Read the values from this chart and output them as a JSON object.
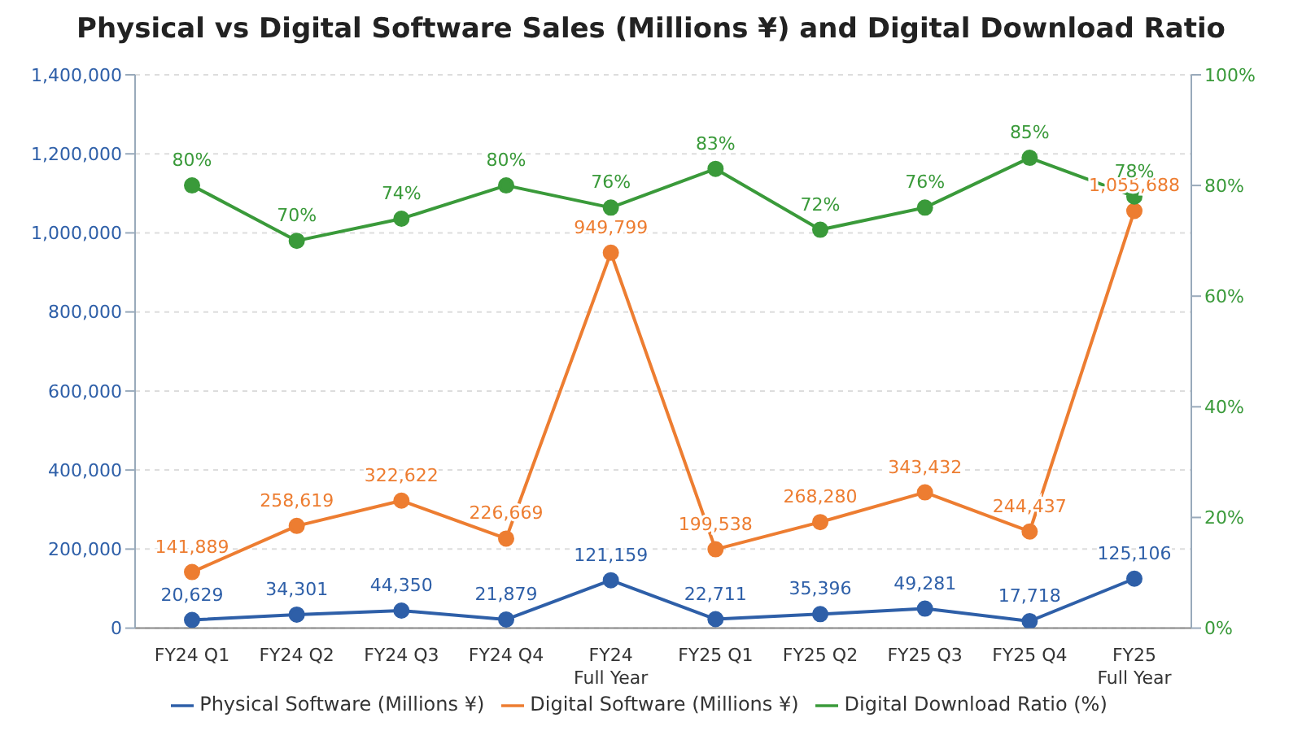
{
  "chart_data": {
    "type": "line",
    "title": "Physical vs Digital Software Sales (Millions ¥) and Digital Download Ratio",
    "categories": [
      "FY24 Q1",
      "FY24 Q2",
      "FY24 Q3",
      "FY24 Q4",
      "FY24\nFull Year",
      "FY25 Q1",
      "FY25 Q2",
      "FY25 Q3",
      "FY25 Q4",
      "FY25\nFull Year"
    ],
    "series": [
      {
        "name": "Physical Software (Millions ¥)",
        "color": "#2e5fa8",
        "values": [
          20629,
          34301,
          44350,
          21879,
          121159,
          22711,
          35396,
          49281,
          17718,
          125106
        ],
        "value_labels": [
          "20,629",
          "34,301",
          "44,350",
          "21,879",
          "121,159",
          "22,711",
          "35,396",
          "49,281",
          "17,718",
          "125,106"
        ]
      },
      {
        "name": "Digital Software (Millions ¥)",
        "color": "#ed7d31",
        "values": [
          141889,
          258619,
          322622,
          226669,
          949799,
          199538,
          268280,
          343432,
          244437,
          1055688
        ],
        "value_labels": [
          "141,889",
          "258,619",
          "322,622",
          "226,669",
          "949,799",
          "199,538",
          "268,280",
          "343,432",
          "244,437",
          "1,055,688"
        ]
      },
      {
        "name": "Digital Download Ratio (%)",
        "color": "#3a9a3a",
        "axis": "y2",
        "values": [
          80,
          70,
          74,
          80,
          76,
          83,
          72,
          76,
          85,
          78
        ],
        "value_labels": [
          "80%",
          "70%",
          "74%",
          "80%",
          "76%",
          "83%",
          "72%",
          "76%",
          "85%",
          "78%"
        ]
      }
    ],
    "ylim": [
      0,
      1400000
    ],
    "yticks": [
      {
        "value": 0,
        "label": "0"
      },
      {
        "value": 200000,
        "label": "200,000"
      },
      {
        "value": 400000,
        "label": "400,000"
      },
      {
        "value": 600000,
        "label": "600,000"
      },
      {
        "value": 800000,
        "label": "800,000"
      },
      {
        "value": 1000000,
        "label": "1,000,000"
      },
      {
        "value": 1200000,
        "label": "1,200,000"
      },
      {
        "value": 1400000,
        "label": "1,400,000"
      }
    ],
    "y2lim": [
      0,
      100
    ],
    "y2ticks": [
      {
        "value": 0,
        "label": "0%"
      },
      {
        "value": 20,
        "label": "20%"
      },
      {
        "value": 40,
        "label": "40%"
      },
      {
        "value": 60,
        "label": "60%"
      },
      {
        "value": 80,
        "label": "80%"
      },
      {
        "value": 100,
        "label": "100%"
      }
    ],
    "grid": "y",
    "legend": "bottom",
    "marker": "circle",
    "line_style": "solid"
  }
}
